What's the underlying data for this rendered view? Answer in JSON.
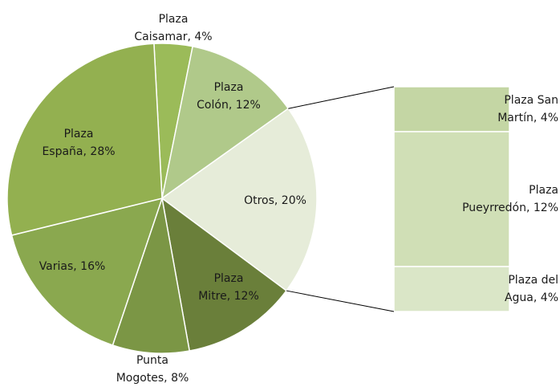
{
  "chart_data": {
    "type": "pie-of-bar",
    "labels": [
      "Plaza\nCaisamar, 4%",
      "Plaza\nColón, 12%",
      "Otros, 20%",
      "Plaza\nMitre, 12%",
      "Punta\nMogotes, 8%",
      "Varias, 16%",
      "Plaza\nEspaña, 28%"
    ],
    "values": [
      4,
      12,
      20,
      12,
      8,
      16,
      28
    ],
    "colors": [
      "#9bbb59",
      "#b0c98a",
      "#e6ecd9",
      "#6a7f3a",
      "#7b9645",
      "#8aa84f",
      "#93b050"
    ],
    "bar": {
      "labels": [
        "Plaza San\nMartín, 4%",
        "Plaza\nPueyrredón, 12%",
        "Plaza del\nAgua, 4%"
      ],
      "values": [
        4,
        12,
        4
      ],
      "colors": [
        "#c4d6a4",
        "#d0dfb6",
        "#dae6c7"
      ]
    }
  }
}
